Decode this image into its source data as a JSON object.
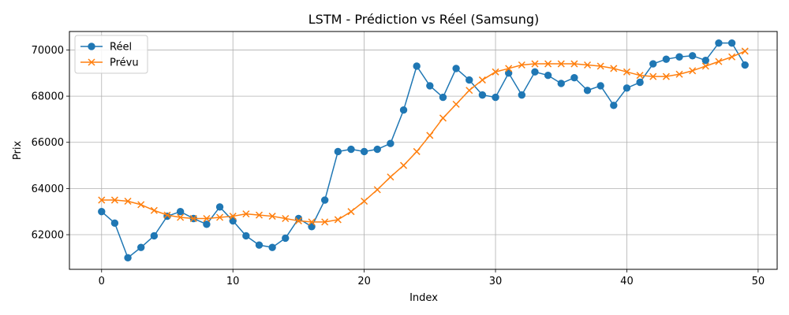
{
  "chart_data": {
    "type": "line",
    "title": "LSTM - Prédiction vs Réel (Samsung)",
    "xlabel": "Index",
    "ylabel": "Prix",
    "xlim": [
      -2.45,
      51.45
    ],
    "ylim": [
      60500,
      70800
    ],
    "x_ticks": [
      0,
      10,
      20,
      30,
      40,
      50
    ],
    "y_ticks": [
      62000,
      64000,
      66000,
      68000,
      70000
    ],
    "grid": true,
    "legend_position": "top-left",
    "x": [
      0,
      1,
      2,
      3,
      4,
      5,
      6,
      7,
      8,
      9,
      10,
      11,
      12,
      13,
      14,
      15,
      16,
      17,
      18,
      19,
      20,
      21,
      22,
      23,
      24,
      25,
      26,
      27,
      28,
      29,
      30,
      31,
      32,
      33,
      34,
      35,
      36,
      37,
      38,
      39,
      40,
      41,
      42,
      43,
      44,
      45,
      46,
      47,
      48,
      49
    ],
    "series": [
      {
        "name": "Réel",
        "color": "#1f77b4",
        "marker": "circle",
        "values": [
          63000,
          62500,
          61000,
          61450,
          61950,
          62800,
          63000,
          62700,
          62450,
          63200,
          62600,
          61950,
          61550,
          61450,
          61850,
          62700,
          62350,
          63500,
          65600,
          65700,
          65600,
          65700,
          65950,
          67400,
          69300,
          68450,
          67950,
          69200,
          68700,
          68050,
          67950,
          69000,
          68050,
          69050,
          68900,
          68550,
          68800,
          68250,
          68450,
          67600,
          68350,
          68600,
          69400,
          69600,
          69700,
          69750,
          69550,
          70300,
          70300,
          69350
        ]
      },
      {
        "name": "Prévu",
        "color": "#ff7f0e",
        "marker": "x",
        "values": [
          63500,
          63500,
          63450,
          63300,
          63050,
          62850,
          62750,
          62700,
          62700,
          62750,
          62800,
          62900,
          62850,
          62800,
          62700,
          62600,
          62550,
          62550,
          62650,
          63000,
          63450,
          63950,
          64500,
          65000,
          65600,
          66300,
          67050,
          67650,
          68250,
          68700,
          69050,
          69200,
          69350,
          69400,
          69400,
          69400,
          69400,
          69350,
          69300,
          69200,
          69050,
          68900,
          68850,
          68850,
          68950,
          69100,
          69300,
          69500,
          69700,
          69950
        ]
      }
    ]
  }
}
